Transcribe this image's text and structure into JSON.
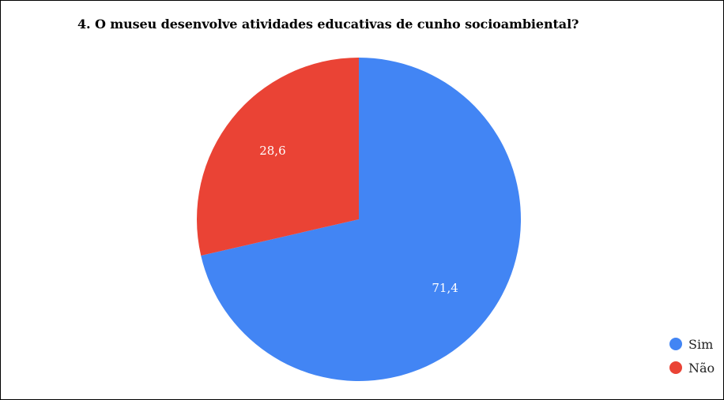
{
  "chart_data": {
    "type": "pie",
    "title": "4. O museu desenvolve atividades educativas de cunho socioambiental?",
    "slices": [
      {
        "label": "Sim",
        "value": 71.4,
        "value_label": "71,4",
        "color": "#4285f4"
      },
      {
        "label": "Não",
        "value": 28.6,
        "value_label": "28,6",
        "color": "#ea4335"
      }
    ],
    "legend_position": "bottom-right"
  }
}
